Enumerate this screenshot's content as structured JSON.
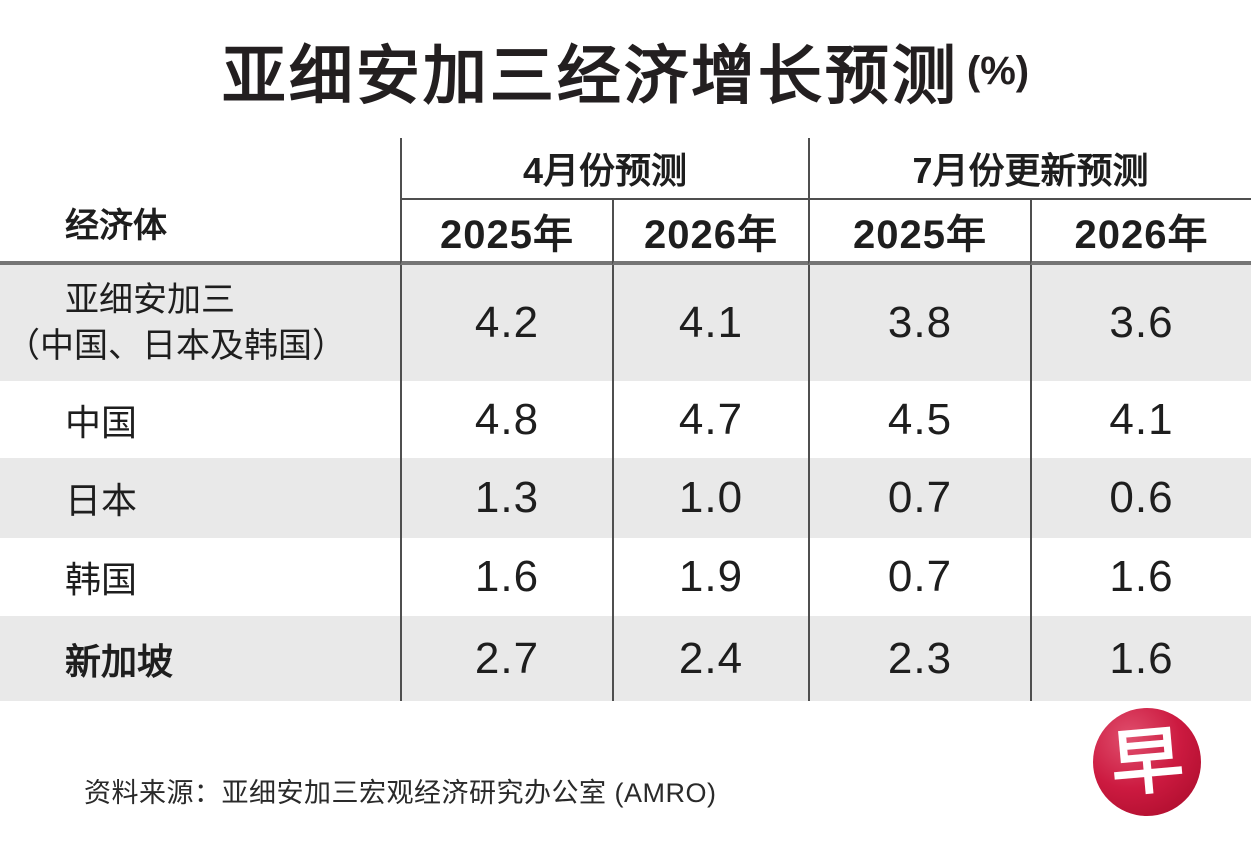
{
  "title": {
    "text": "亚细安加三经济增长预测",
    "unit": "(%)"
  },
  "table": {
    "economy_header": "经济体",
    "group_headers": [
      "4月份预测",
      "7月份更新预测"
    ],
    "year_headers": [
      "2025年",
      "2026年",
      "2025年",
      "2026年"
    ],
    "rows": [
      {
        "label": "亚细安加三",
        "label_note": "（中国、日本及韩国）",
        "values": [
          "4.2",
          "4.1",
          "3.8",
          "3.6"
        ]
      },
      {
        "label": "中国",
        "values": [
          "4.8",
          "4.7",
          "4.5",
          "4.1"
        ]
      },
      {
        "label": "日本",
        "values": [
          "1.3",
          "1.0",
          "0.7",
          "0.6"
        ]
      },
      {
        "label": "韩国",
        "values": [
          "1.6",
          "1.9",
          "0.7",
          "1.6"
        ]
      },
      {
        "label": "新加坡",
        "values": [
          "2.7",
          "2.4",
          "2.3",
          "1.6"
        ]
      }
    ]
  },
  "source": "资料来源：亚细安加三宏观经济研究办公室 (AMRO)",
  "logo": {
    "glyph": "早"
  },
  "colors": {
    "row_stripe": "#e9e9e9",
    "thin_line": "#4f4f4f",
    "thick_line": "#757575",
    "text": "#1e1e1e",
    "logo_red": "#c21639"
  },
  "chart_data": {
    "type": "table",
    "title": "亚细安加三经济增长预测 (%)",
    "column_groups": [
      {
        "label": "4月份预测",
        "columns": [
          "2025年",
          "2026年"
        ]
      },
      {
        "label": "7月份更新预测",
        "columns": [
          "2025年",
          "2026年"
        ]
      }
    ],
    "columns": [
      "经济体",
      "4月份预测 2025年",
      "4月份预测 2026年",
      "7月份更新预测 2025年",
      "7月份更新预测 2026年"
    ],
    "rows": [
      [
        "亚细安加三（中国、日本及韩国）",
        4.2,
        4.1,
        3.8,
        3.6
      ],
      [
        "中国",
        4.8,
        4.7,
        4.5,
        4.1
      ],
      [
        "日本",
        1.3,
        1.0,
        0.7,
        0.6
      ],
      [
        "韩国",
        1.6,
        1.9,
        0.7,
        1.6
      ],
      [
        "新加坡",
        2.7,
        2.4,
        2.3,
        1.6
      ]
    ],
    "source": "资料来源：亚细安加三宏观经济研究办公室 (AMRO)"
  }
}
